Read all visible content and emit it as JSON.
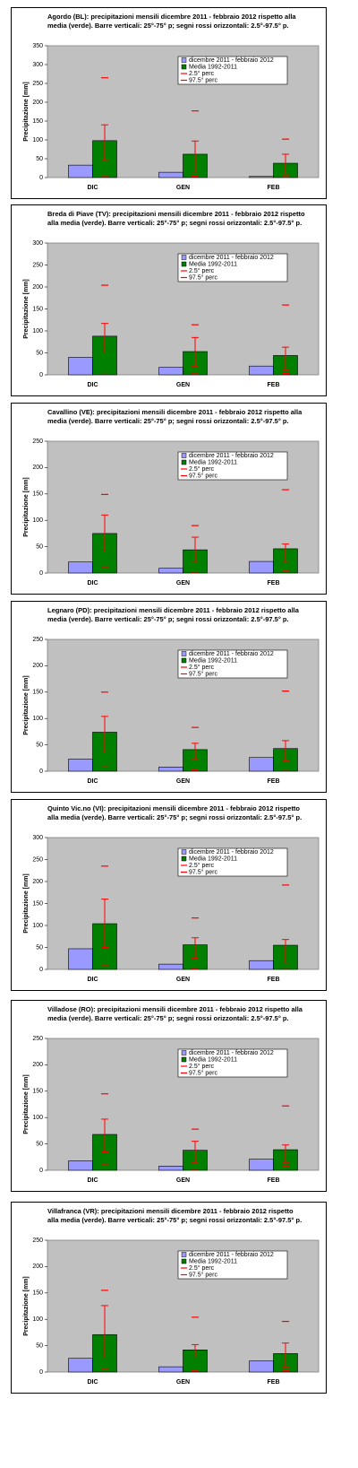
{
  "chart_data": [
    {
      "type": "bar",
      "title": "Agordo (BL): precipitazioni mensili dicembre 2011 - febbraio 2012 rispetto alla media (verde).  Barre verticali: 25°-75° p; segni rossi orizzontali: 2.5°-97.5° p.",
      "ylabel": "Precipitazione [mm]",
      "categories": [
        "DIC",
        "GEN",
        "FEB"
      ],
      "ylim": [
        0,
        350
      ],
      "yticks": [
        0,
        50,
        100,
        150,
        200,
        250,
        300,
        350
      ],
      "series": [
        {
          "name": "dicembre 2011 - febbraio 2012",
          "color": "#9999ff",
          "values": [
            33,
            14,
            3
          ]
        },
        {
          "name": "Media 1992-2011",
          "color": "#008000",
          "values": [
            98,
            62,
            38
          ],
          "low": [
            45,
            15,
            10
          ],
          "high": [
            140,
            97,
            62
          ]
        },
        {
          "name": "2.5° perc",
          "color": "#ff0000",
          "values": [
            5,
            3,
            2
          ]
        },
        {
          "name": "97.5° perc",
          "color": "#ff0000",
          "values": [
            265,
            177,
            102
          ]
        }
      ]
    },
    {
      "type": "bar",
      "title": "Breda di Piave (TV): precipitazioni mensili dicembre 2011 - febbraio 2012 rispetto alla media (verde).  Barre verticali: 25°-75° p; segni rossi orizzontali: 2.5°-97.5° p.",
      "ylabel": "Precipitazione [mm]",
      "categories": [
        "DIC",
        "GEN",
        "FEB"
      ],
      "ylim": [
        0,
        300
      ],
      "yticks": [
        0,
        50,
        100,
        150,
        200,
        250,
        300
      ],
      "series": [
        {
          "name": "dicembre 2011 - febbraio 2012",
          "color": "#9999ff",
          "values": [
            40,
            17,
            20
          ]
        },
        {
          "name": "Media 1992-2011",
          "color": "#008000",
          "values": [
            88,
            53,
            44
          ],
          "low": [
            50,
            20,
            12
          ],
          "high": [
            117,
            85,
            63
          ]
        },
        {
          "name": "2.5° perc",
          "color": "#ff0000",
          "values": [
            5,
            2,
            3
          ]
        },
        {
          "name": "97.5° perc",
          "color": "#ff0000",
          "values": [
            204,
            114,
            159
          ]
        }
      ]
    },
    {
      "type": "bar",
      "title": "Cavallino (VE): precipitazioni mensili dicembre 2011 - febbraio 2012 rispetto alla media (verde).  Barre verticali: 25°-75° p; segni rossi orizzontali: 2.5°-97.5° p.",
      "ylabel": "Precipitazione [mm]",
      "categories": [
        "DIC",
        "GEN",
        "FEB"
      ],
      "ylim": [
        0,
        250
      ],
      "yticks": [
        0,
        50,
        100,
        150,
        200,
        250
      ],
      "series": [
        {
          "name": "dicembre 2011 - febbraio 2012",
          "color": "#9999ff",
          "values": [
            21,
            9,
            22
          ]
        },
        {
          "name": "Media 1992-2011",
          "color": "#008000",
          "values": [
            75,
            44,
            46
          ],
          "low": [
            40,
            20,
            20
          ],
          "high": [
            110,
            68,
            55
          ]
        },
        {
          "name": "2.5° perc",
          "color": "#ff0000",
          "values": [
            12,
            2,
            5
          ]
        },
        {
          "name": "97.5° perc",
          "color": "#ff0000",
          "values": [
            149,
            90,
            158
          ]
        }
      ]
    },
    {
      "type": "bar",
      "title": "Legnaro (PD): precipitazioni mensili dicembre 2011 - febbraio 2012 rispetto alla media (verde).  Barre verticali: 25°-75° p; segni rossi orizzontali: 2.5°-97.5° p.",
      "ylabel": "Precipitazione [mm]",
      "categories": [
        "DIC",
        "GEN",
        "FEB"
      ],
      "ylim": [
        0,
        250
      ],
      "yticks": [
        0,
        50,
        100,
        150,
        200,
        250
      ],
      "series": [
        {
          "name": "dicembre 2011 - febbraio 2012",
          "color": "#9999ff",
          "values": [
            23,
            8,
            26
          ]
        },
        {
          "name": "Media 1992-2011",
          "color": "#008000",
          "values": [
            74,
            41,
            43
          ],
          "low": [
            35,
            22,
            20
          ],
          "high": [
            104,
            53,
            58
          ]
        },
        {
          "name": "2.5° perc",
          "color": "#ff0000",
          "values": [
            8,
            2,
            4
          ]
        },
        {
          "name": "97.5° perc",
          "color": "#ff0000",
          "values": [
            150,
            83,
            152
          ]
        }
      ]
    },
    {
      "type": "bar",
      "title": "Quinto Vic.no (VI): precipitazioni mensili dicembre 2011 - febbraio 2012 rispetto alla media (verde).  Barre verticali: 25°-75° p; segni rossi orizzontali: 2.5°-97.5° p.",
      "ylabel": "Precipitazione [mm]",
      "categories": [
        "DIC",
        "GEN",
        "FEB"
      ],
      "ylim": [
        0,
        300
      ],
      "yticks": [
        0,
        50,
        100,
        150,
        200,
        250,
        300
      ],
      "series": [
        {
          "name": "dicembre 2011 - febbraio 2012",
          "color": "#9999ff",
          "values": [
            47,
            12,
            20
          ]
        },
        {
          "name": "Media 1992-2011",
          "color": "#008000",
          "values": [
            104,
            56,
            55
          ],
          "low": [
            50,
            25,
            15
          ],
          "high": [
            160,
            72,
            68
          ]
        },
        {
          "name": "2.5° perc",
          "color": "#ff0000",
          "values": [
            8,
            2,
            3
          ]
        },
        {
          "name": "97.5° perc",
          "color": "#ff0000",
          "values": [
            235,
            117,
            192
          ]
        }
      ]
    },
    {
      "type": "bar",
      "title": "Villadose (RO): precipitazioni mensili dicembre 2011 - febbraio 2012 rispetto alla media (verde).  Barre verticali: 25°-75° p; segni rossi orizzontali: 2.5°-97.5° p.",
      "ylabel": "Precipitazione [mm]",
      "categories": [
        "DIC",
        "GEN",
        "FEB"
      ],
      "ylim": [
        0,
        250
      ],
      "yticks": [
        0,
        50,
        100,
        150,
        200,
        250
      ],
      "series": [
        {
          "name": "dicembre 2011 - febbraio 2012",
          "color": "#9999ff",
          "values": [
            18,
            8,
            21
          ]
        },
        {
          "name": "Media 1992-2011",
          "color": "#008000",
          "values": [
            68,
            38,
            39
          ],
          "low": [
            35,
            15,
            15
          ],
          "high": [
            97,
            55,
            48
          ]
        },
        {
          "name": "2.5° perc",
          "color": "#ff0000",
          "values": [
            12,
            2,
            7
          ]
        },
        {
          "name": "97.5° perc",
          "color": "#ff0000",
          "values": [
            145,
            78,
            122
          ]
        }
      ]
    },
    {
      "type": "bar",
      "title": "Villafranca (VR): precipitazioni mensili dicembre 2011 - febbraio 2012 rispetto alla media (verde).  Barre verticali: 25°-75° p; segni rossi orizzontali: 2.5°-97.5° p.",
      "ylabel": "Precipitazione [mm]",
      "categories": [
        "DIC",
        "GEN",
        "FEB"
      ],
      "ylim": [
        0,
        250
      ],
      "yticks": [
        0,
        50,
        100,
        150,
        200,
        250
      ],
      "series": [
        {
          "name": "dicembre 2011 - febbraio 2012",
          "color": "#9999ff",
          "values": [
            26,
            10,
            21
          ]
        },
        {
          "name": "Media 1992-2011",
          "color": "#008000",
          "values": [
            71,
            42,
            35
          ],
          "low": [
            28,
            28,
            10
          ],
          "high": [
            126,
            52,
            55
          ]
        },
        {
          "name": "2.5° perc",
          "color": "#ff0000",
          "values": [
            5,
            2,
            3
          ]
        },
        {
          "name": "97.5° perc",
          "color": "#ff0000",
          "values": [
            155,
            104,
            96
          ]
        }
      ]
    }
  ]
}
